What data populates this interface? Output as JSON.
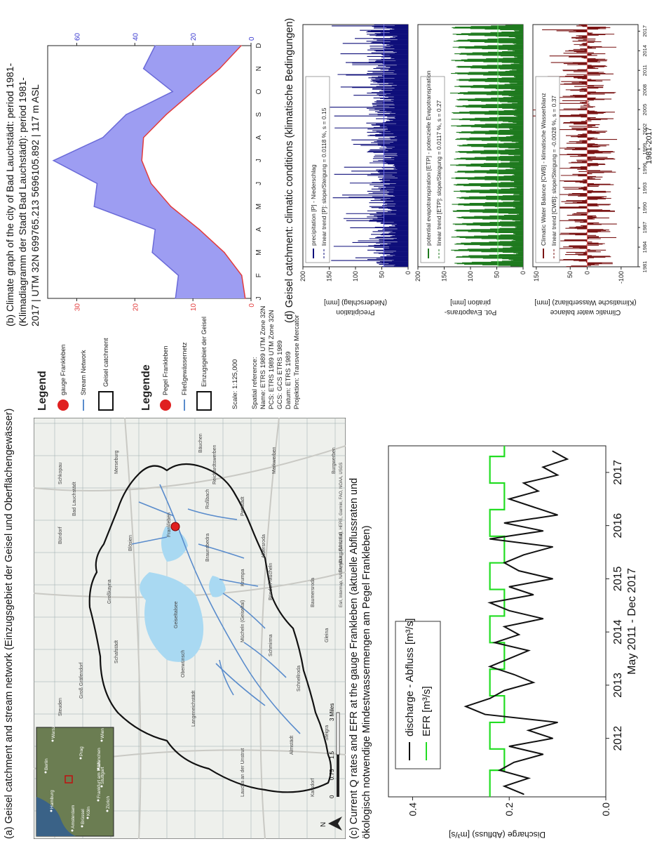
{
  "panel_a": {
    "caption": "(a) Geisel catchment and stream network (Einzugsgebiet der Geisel und Oberflächengewässer)",
    "legend_en": {
      "title": "Legend",
      "gauge": "gauge Frankleben",
      "stream": "Stream Network",
      "catchment": "Geisel catchment"
    },
    "legend_de": {
      "title": "Legende",
      "gauge": "Pegel Frankleben",
      "stream": "Fließgewässernetz",
      "catchment": "Einzugsgebiet der Geisel"
    },
    "scale": "Scale: 1:125,000",
    "spatial_ref": [
      "Spatial reference:",
      "Name: ETRS 1989 UTM Zone 32N",
      "PCS: ETRS 1989 UTM Zone 32N",
      "GCS: GCS ETRS 1989",
      "Datum: ETRS 1989",
      "Projektion: Transverse Mercator"
    ],
    "scalebar": {
      "labels": [
        "0",
        "0.75",
        "1.5",
        "3 Miles"
      ]
    },
    "north": "N",
    "places": [
      "Schkopau",
      "Merseburg",
      "Bad Lauchstädt",
      "Bündorf",
      "Blösien",
      "Frankleben",
      "Braunsbedra",
      "Geiseltalsee",
      "Großkayna",
      "Mücheln (Geiseltal)",
      "Krumpa",
      "Oberwünsch",
      "Langeneichstädt",
      "Schafstädt",
      "Groß Gräfendorf",
      "Steuden",
      "Schmirma",
      "Schnellroda",
      "Albersroda",
      "Baumersroda",
      "Gleina",
      "Freyburg (Unstrut)",
      "Steigra",
      "Karsdorf",
      "Laucha an der Unstrut",
      "Almstädt",
      "Reichardtswerben",
      "Markwerben",
      "Burgwerben",
      "Bündorf-Mücheln",
      "Pettstädt",
      "Roßbach",
      "Bäuchen"
    ],
    "inset_places": [
      "Hamburg",
      "Berlin",
      "Amsterdam",
      "Köln",
      "Frankfurt am Main",
      "Prag",
      "Zürich",
      "Stuttgart",
      "München",
      "Wien",
      "Brüssel",
      "Warsz"
    ],
    "attribution": "Esri, Intermap, NASA, NGA, USGS, Esri, HERE, Garmin, FAO, NOAA, USGS"
  },
  "panel_b": {
    "caption": [
      "(b) Climate graph of the city of Bad Lauchstädt: period 1981-",
      "(Klimadiagramm  der Stadt Bad Lauchstädt): period 1981-",
      "2017 | UTM 32N 699765.213  5696105.892  | 117  m ASL"
    ],
    "caption_lines": [
      "(b) Climate graph of the city of Bad Lauchstädt: period 1981-",
      "2017 | UTM 32N 699765.213  5696105.892  | 117  m ASL"
    ]
  },
  "panel_c": {
    "caption": [
      "(c) Current  Q rates and EFR at the gauge Frankleben (aktuelle Abflussraten und",
      "ökologisch notwendige Mindestwassermengen am Pegel Frankleben)"
    ],
    "legend": {
      "discharge": "discharge - Abfluss [m³/s]",
      "efr": "EFR [m³/s]"
    }
  },
  "panel_d": {
    "caption": "(d) Geisel catchment: climatic  conditions (klimatische Bedingungen)",
    "p_legend": [
      "precipitation [P] - Niederschlag",
      "linear trend [P]: slope/Steigung = 0.0118 %, s = 0.15"
    ],
    "etp_legend": [
      "potential evapotranspiration [ETP] - potenzielle Evapotranspiration",
      "linear trend [ETP]: slope/Steigung = 0.0117 %, s = 0.27"
    ],
    "cwb_legend": [
      "Climatic Water Balance [CWB] - klimatische Wasserbilanz",
      "linear trend [CWB]: slope/Steigung = -0.0028 %, s = 0.37"
    ],
    "p_ylabel": [
      "Precipitation",
      "(Niederschlag) [mm]"
    ],
    "etp_ylabel": [
      "Pot. Evapotrans-",
      "piration [mm]"
    ],
    "cwb_ylabel": [
      "Climatic  water balance",
      "(Klimatische Wasserbilanz) [mm]"
    ],
    "xlabel": "1981-2017"
  },
  "colors": {
    "precip": "#0f0f7a",
    "etp": "#1f7a1f",
    "cwb": "#7a1414",
    "climate_fill": "#9d9df2",
    "temp": "#e23b3b",
    "efr": "#22dd22",
    "discharge": "#111111",
    "catchment": "#111111",
    "stream": "#5a8ccc",
    "lake": "#a9d9f2"
  },
  "chart_data": [
    {
      "id": "climate_graph",
      "type": "area",
      "title": "",
      "categories": [
        "J",
        "F",
        "M",
        "A",
        "M",
        "J",
        "J",
        "A",
        "S",
        "O",
        "N",
        "D"
      ],
      "series": [
        {
          "name": "",
          "axis": "left",
          "values": [
            1.0,
            1.6,
            4.6,
            8.9,
            13.8,
            17.2,
            18.8,
            18.5,
            14.6,
            10.0,
            5.4,
            1.7
          ]
        },
        {
          "name": "",
          "axis": "right",
          "values": [
            26,
            25,
            34,
            33,
            54,
            53,
            68,
            51,
            43,
            27,
            37,
            33
          ]
        }
      ],
      "left_axis": {
        "min": 0,
        "max": 35,
        "ticks": [
          0,
          10,
          20,
          30
        ]
      },
      "right_axis": {
        "min": 0,
        "max": 70,
        "ticks": [
          0,
          20,
          40,
          60
        ]
      }
    },
    {
      "id": "discharge",
      "type": "line",
      "title": "",
      "xlabel": "May 2011 - Dec 2017",
      "ylabel": "Discharge (Abfluss) [m³/s]",
      "x_ticks": [
        "2012",
        "2013",
        "2014",
        "2015",
        "2016",
        "2017"
      ],
      "y_ticks": [
        0.0,
        0.2,
        0.4
      ],
      "ylim": [
        0,
        0.45
      ],
      "xlim": [
        2011.4,
        2018.0
      ],
      "series": [
        {
          "name": "discharge - Abfluss [m³/s]",
          "x": [
            2011.45,
            2011.6,
            2011.75,
            2011.9,
            2012.05,
            2012.2,
            2012.35,
            2012.5,
            2012.65,
            2012.8,
            2012.95,
            2013.1,
            2013.25,
            2013.4,
            2013.55,
            2013.7,
            2013.85,
            2014.0,
            2014.15,
            2014.3,
            2014.45,
            2014.6,
            2014.75,
            2014.9,
            2015.05,
            2015.2,
            2015.35,
            2015.5,
            2015.65,
            2015.8,
            2015.95,
            2016.1,
            2016.25,
            2016.4,
            2016.55,
            2016.7,
            2016.85,
            2017.0,
            2017.15,
            2017.3,
            2017.45,
            2017.6,
            2017.75,
            2017.9
          ],
          "values": [
            0.17,
            0.21,
            0.16,
            0.22,
            0.19,
            0.13,
            0.2,
            0.11,
            0.16,
            0.1,
            0.25,
            0.29,
            0.24,
            0.21,
            0.15,
            0.19,
            0.24,
            0.2,
            0.16,
            0.23,
            0.18,
            0.21,
            0.13,
            0.2,
            0.24,
            0.15,
            0.2,
            0.11,
            0.18,
            0.21,
            0.17,
            0.11,
            0.24,
            0.13,
            0.21,
            0.1,
            0.15,
            0.2,
            0.14,
            0.17,
            0.1,
            0.13,
            0.08,
            0.11
          ]
        },
        {
          "name": "EFR [m³/s]",
          "step": true,
          "x": [
            2011.4,
            2011.9,
            2012.3,
            2012.8,
            2013.3,
            2013.8,
            2014.3,
            2014.8,
            2015.3,
            2015.8,
            2016.3,
            2016.8,
            2017.3,
            2017.8
          ],
          "values": [
            0.24,
            0.21,
            0.24,
            0.21,
            0.24,
            0.21,
            0.24,
            0.21,
            0.24,
            0.21,
            0.24,
            0.21,
            0.24,
            0.21
          ]
        }
      ]
    },
    {
      "id": "precipitation",
      "type": "bar",
      "title": "",
      "y_ticks": [
        0,
        50,
        100,
        150,
        200
      ],
      "ylim": [
        0,
        200
      ],
      "xlim": [
        1981,
        2018
      ],
      "trend": 46
    },
    {
      "id": "etp",
      "type": "bar",
      "title": "",
      "y_ticks": [
        0,
        50,
        100,
        150,
        200
      ],
      "ylim": [
        0,
        200
      ],
      "xlim": [
        1981,
        2018
      ],
      "trend": 48
    },
    {
      "id": "cwb",
      "type": "bar",
      "title": "",
      "y_ticks": [
        -100,
        0,
        50,
        150
      ],
      "ylim": [
        -150,
        160
      ],
      "xlim": [
        1981,
        2018
      ],
      "x_ticks": [
        "1981",
        "1984",
        "1987",
        "1990",
        "1993",
        "1996",
        "1999",
        "2002",
        "2005",
        "2008",
        "2011",
        "2014",
        "2017"
      ],
      "trend": 0
    }
  ]
}
